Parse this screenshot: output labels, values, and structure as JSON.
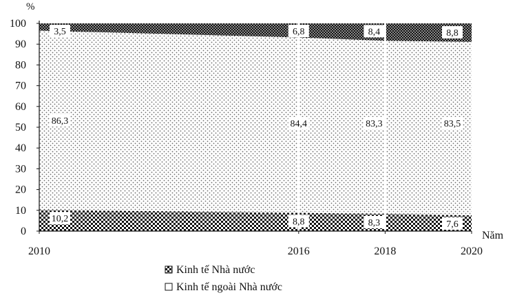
{
  "chart_data": {
    "type": "area",
    "stacked": true,
    "percent": true,
    "x": [
      2010,
      2016,
      2018,
      2020
    ],
    "x_tick_labels": [
      "2010",
      "2016",
      "2018",
      "2020"
    ],
    "series": [
      {
        "name": "Kinh tế Nhà nước",
        "values": [
          10.2,
          8.8,
          8.3,
          7.6
        ],
        "pattern": "checker-light"
      },
      {
        "name": "",
        "values": [
          86.3,
          84.4,
          83.3,
          83.5
        ],
        "pattern": "dots"
      },
      {
        "name": "",
        "values": [
          3.5,
          6.8,
          8.4,
          8.8
        ],
        "pattern": "checker-dark"
      }
    ],
    "data_labels": {
      "bottom": [
        "10,2",
        "8,8",
        "8,3",
        "7,6"
      ],
      "middle": [
        "86,3",
        "84,4",
        "83,3",
        "83,5"
      ],
      "top": [
        "3,5",
        "6,8",
        "8,4",
        "8,8"
      ]
    },
    "y_unit": "%",
    "x_unit": "Năm",
    "yticks": [
      "0",
      "10",
      "20",
      "30",
      "40",
      "50",
      "60",
      "70",
      "80",
      "90",
      "100"
    ],
    "ylim": [
      0,
      100
    ],
    "grid": false,
    "legend_position": "bottom-center",
    "legend": [
      {
        "label": "Kinh tế Nhà nước",
        "swatch": "checker"
      },
      {
        "label": "Kinh tế ngoài Nhà nước",
        "swatch": "empty"
      }
    ]
  }
}
